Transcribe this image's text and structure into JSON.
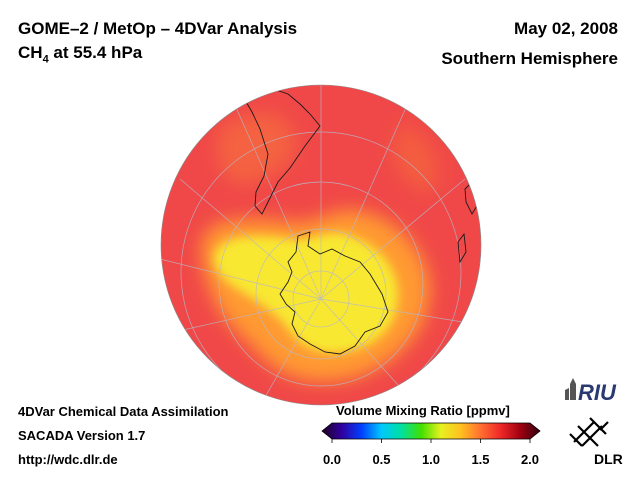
{
  "header": {
    "title_line1": "GOME–2 / MetOp – 4DVar Analysis",
    "species": "CH",
    "species_sub": "4",
    "pressure": " at 55.4 hPa",
    "date": "May 02, 2008",
    "region": "Southern Hemisphere"
  },
  "footer": {
    "line1": "4DVar Chemical Data Assimilation",
    "line2": "SACADA Version 1.7",
    "line3": "http://wdc.dlr.de"
  },
  "colorbar": {
    "label": "Volume Mixing Ratio [ppmv]",
    "ticks": [
      "0.0",
      "0.5",
      "1.0",
      "1.5",
      "2.0"
    ],
    "colors": [
      "#200020",
      "#3000a0",
      "#0040ff",
      "#00c8ff",
      "#00e0a0",
      "#40e000",
      "#e8f020",
      "#ffc020",
      "#ff7030",
      "#f02828",
      "#a00010",
      "#300010"
    ]
  },
  "map": {
    "background_color": "#f04848",
    "high_color": "#f8e830",
    "mid_color": "#ff9a30"
  },
  "logos": {
    "riu": "RIU",
    "dlr": "DLR"
  }
}
